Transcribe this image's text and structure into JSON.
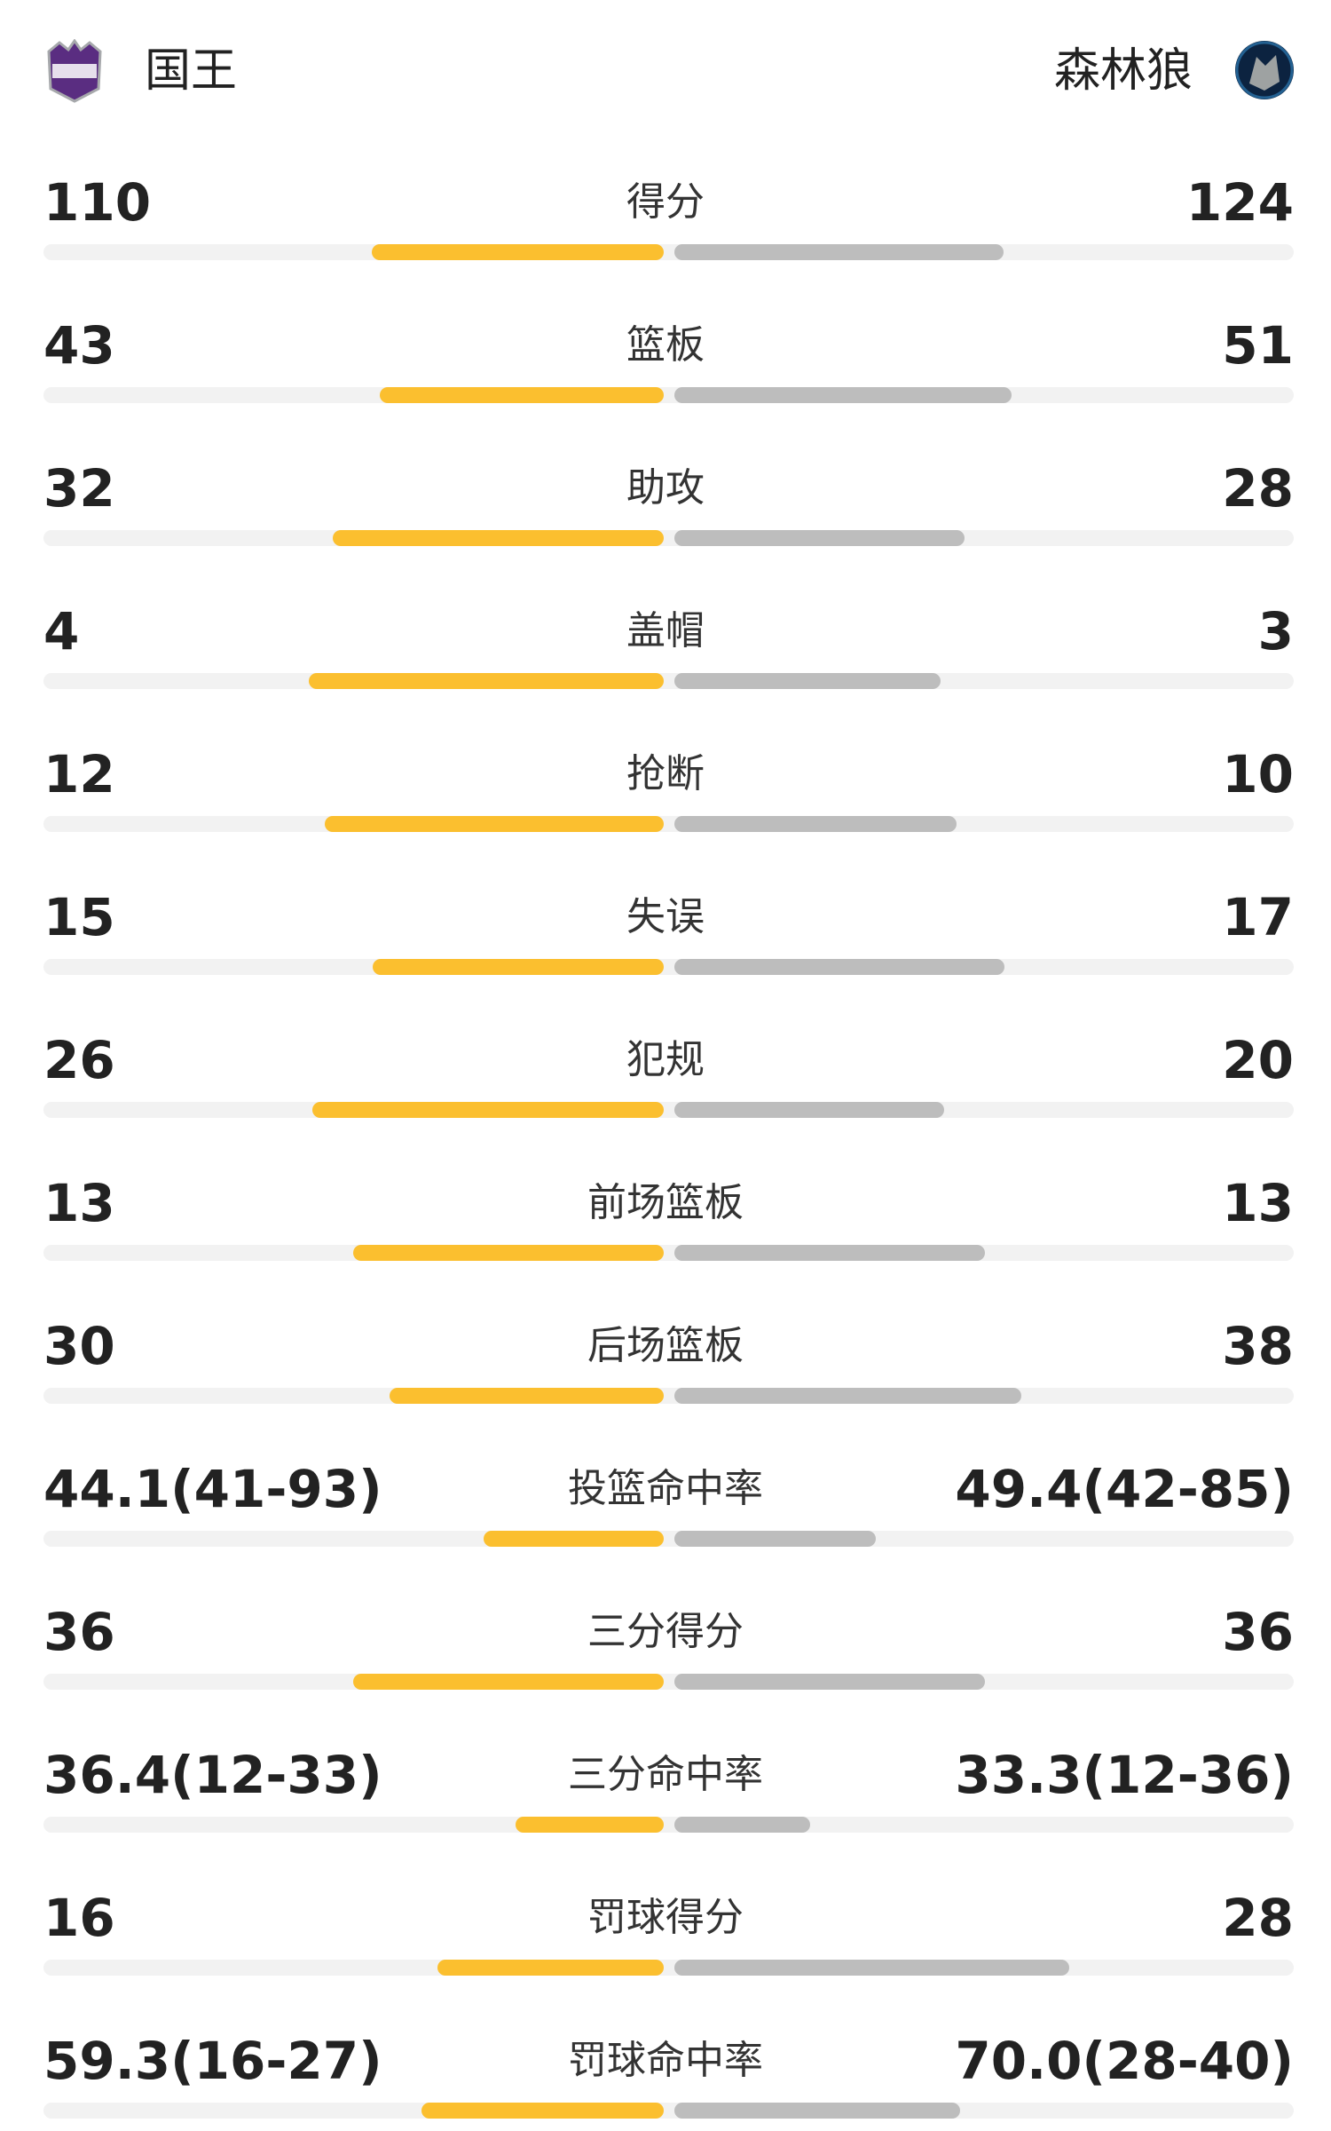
{
  "header": {
    "home": "国王",
    "away": "森林狼"
  },
  "rows": [
    {
      "label": "得分",
      "left": 110,
      "right": 124
    },
    {
      "label": "篮板",
      "left": 43,
      "right": 51
    },
    {
      "label": "助攻",
      "left": 32,
      "right": 28
    },
    {
      "label": "盖帽",
      "left": 4,
      "right": 3
    },
    {
      "label": "抢断",
      "left": 12,
      "right": 10
    },
    {
      "label": "失误",
      "left": 15,
      "right": 17
    },
    {
      "label": "犯规",
      "left": 26,
      "right": 20
    },
    {
      "label": "前场篮板",
      "left": 13,
      "right": 13
    },
    {
      "label": "后场篮板",
      "left": 30,
      "right": 38
    },
    {
      "label": "投篮命中率",
      "left": {
        "value": 44.1,
        "label": "44.1(41-93)"
      },
      "right": {
        "value": 49.4,
        "label": "49.4(42-85)"
      }
    },
    {
      "label": "三分得分",
      "left": 36,
      "right": 36
    },
    {
      "label": "三分命中率",
      "left": {
        "value": 36.4,
        "label": "36.4(12-33)"
      },
      "right": {
        "value": 33.3,
        "label": "33.3(12-36)"
      }
    },
    {
      "label": "罚球得分",
      "left": 16,
      "right": 28
    },
    {
      "label": "罚球命中率",
      "left": {
        "value": 59.3,
        "label": "59.3(16-27)"
      },
      "right": {
        "value": 70.0,
        "label": "70.0(28-40)"
      }
    }
  ]
}
